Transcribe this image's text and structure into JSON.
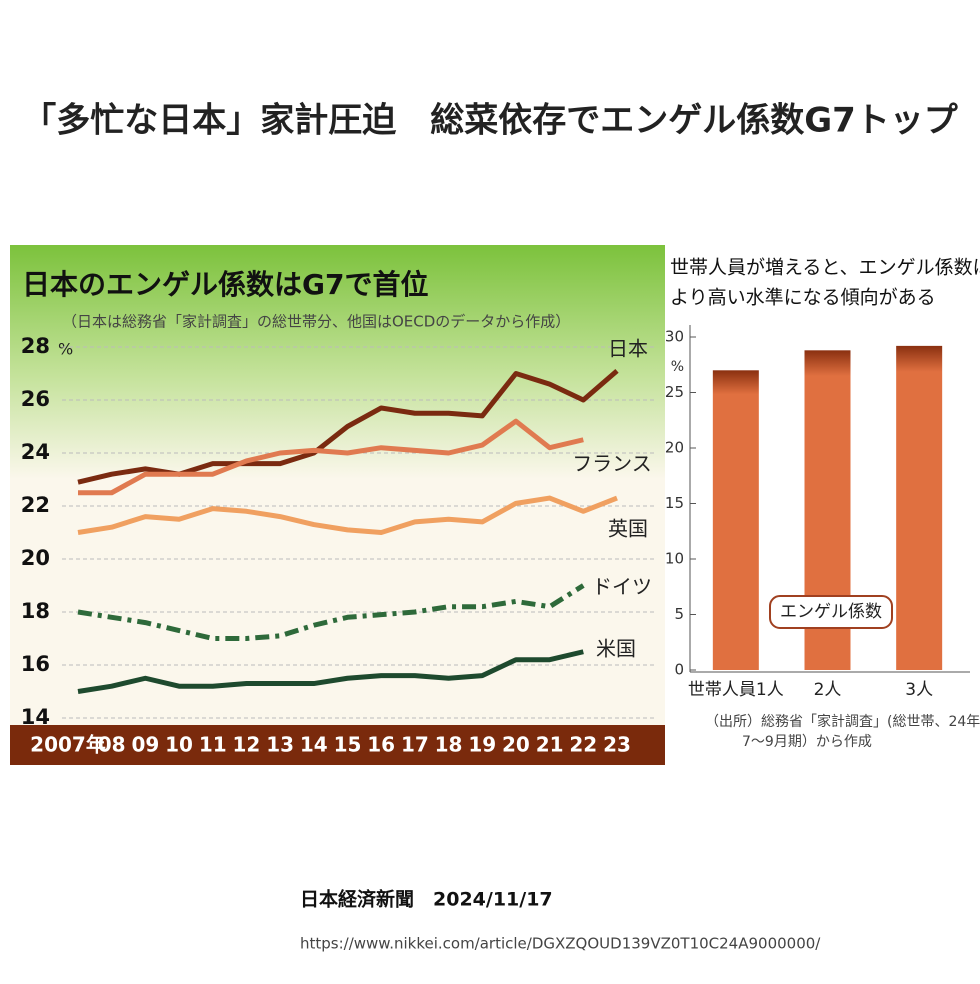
{
  "header": {
    "title": "「多忙な日本」家計圧迫　総菜依存でエンゲル係数G7トップ"
  },
  "chart_data": [
    {
      "type": "line",
      "title": "日本のエンゲル係数はG7で首位",
      "subtitle": "（日本は総務省「家計調査」の総世帯分、他国はOECDのデータから作成）",
      "y_unit": "%",
      "categories": [
        "2007年",
        "08",
        "09",
        "10",
        "11",
        "12",
        "13",
        "14",
        "15",
        "16",
        "17",
        "18",
        "19",
        "20",
        "21",
        "22",
        "23"
      ],
      "series": [
        {
          "name": "日本",
          "color": "#7a2a10",
          "values": [
            22.9,
            23.2,
            23.4,
            23.2,
            23.6,
            23.6,
            23.6,
            24.0,
            25.0,
            25.7,
            25.5,
            25.5,
            25.4,
            27.0,
            26.6,
            26.0,
            27.1
          ]
        },
        {
          "name": "フランス",
          "color": "#e07a50",
          "values": [
            22.5,
            22.5,
            23.2,
            23.2,
            23.2,
            23.7,
            24.0,
            24.1,
            24.0,
            24.2,
            24.1,
            24.0,
            24.3,
            25.2,
            24.2,
            24.5,
            null
          ]
        },
        {
          "name": "英国",
          "color": "#f0a060",
          "values": [
            21.0,
            21.2,
            21.6,
            21.5,
            21.9,
            21.8,
            21.6,
            21.3,
            21.1,
            21.0,
            21.4,
            21.5,
            21.4,
            22.1,
            22.3,
            21.8,
            22.3
          ]
        },
        {
          "name": "ドイツ",
          "color": "#2e6a3a",
          "dashed": true,
          "values": [
            18.0,
            17.8,
            17.6,
            17.3,
            17.0,
            17.0,
            17.1,
            17.5,
            17.8,
            17.9,
            18.0,
            18.2,
            18.2,
            18.4,
            18.2,
            19.0,
            null
          ]
        },
        {
          "name": "米国",
          "color": "#1e4a2e",
          "values": [
            15.0,
            15.2,
            15.5,
            15.2,
            15.2,
            15.3,
            15.3,
            15.3,
            15.5,
            15.6,
            15.6,
            15.5,
            15.6,
            16.2,
            16.2,
            16.5,
            null
          ]
        }
      ],
      "ylim": [
        14,
        28
      ],
      "yticks": [
        14,
        16,
        18,
        20,
        22,
        24,
        26,
        28
      ],
      "grid": true
    },
    {
      "type": "bar",
      "title": [
        "世帯人員が増えると、エンゲル係数は",
        "より高い水準になる傾向がある"
      ],
      "y_unit": "%",
      "categories": [
        "世帯人員1人",
        "2人",
        "3人"
      ],
      "series": [
        {
          "name": "エンゲル係数",
          "color": "#e07040",
          "values": [
            27.0,
            28.8,
            29.2
          ]
        }
      ],
      "ylim": [
        0,
        30
      ],
      "yticks": [
        0,
        5,
        10,
        15,
        20,
        25,
        30
      ],
      "grid": false,
      "source": [
        "（出所）総務省「家計調査」(総世帯、24年",
        "7～9月期）から作成"
      ]
    }
  ],
  "footer": {
    "credit": "日本経済新聞　2024/11/17",
    "url": "https://www.nikkei.com/article/DGXZQOUD139VZ0T10C24A9000000/"
  }
}
